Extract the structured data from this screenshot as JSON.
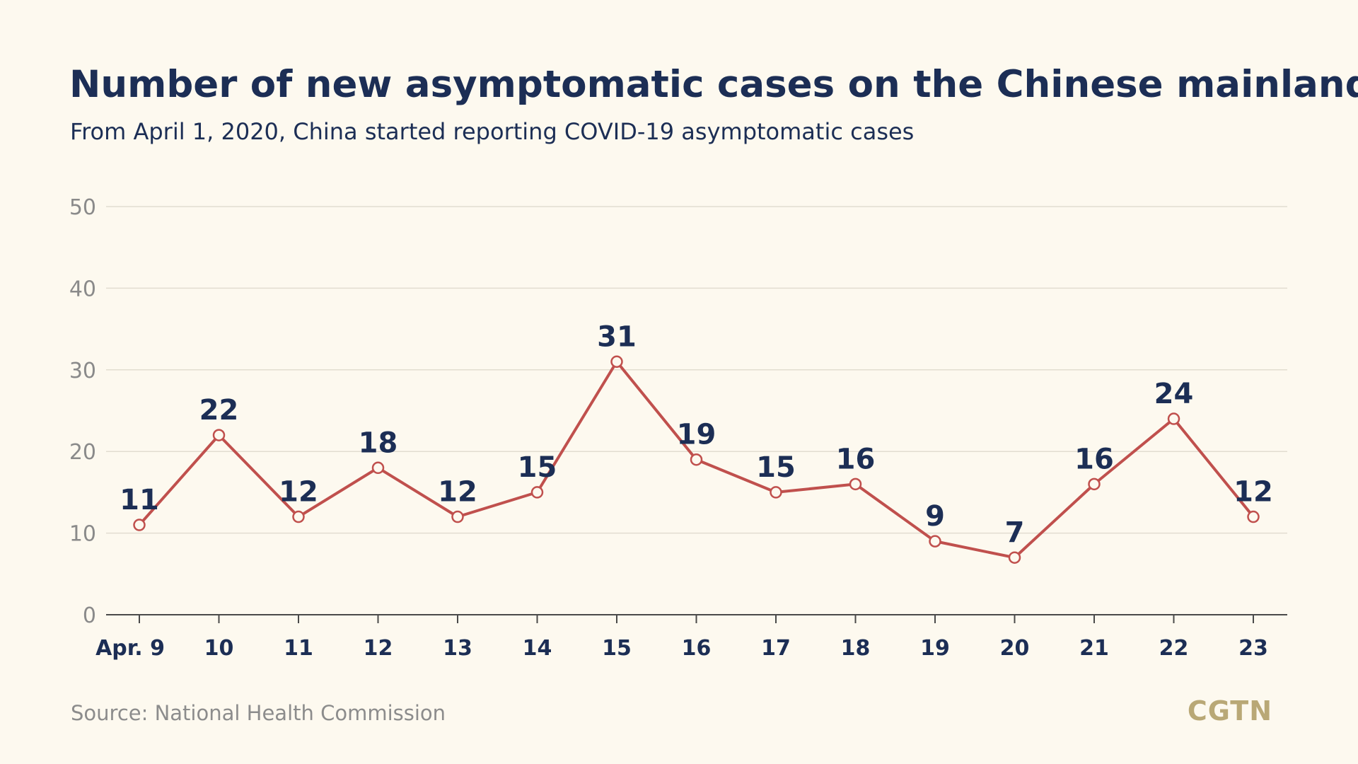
{
  "chart_data": {
    "type": "line",
    "title": "Number of new asymptomatic cases on the Chinese mainland",
    "subtitle": "From April 1, 2020, China started reporting COVID-19 asymptomatic cases",
    "xlabel": "",
    "ylabel": "",
    "categories": [
      "Apr. 9",
      "10",
      "11",
      "12",
      "13",
      "14",
      "15",
      "16",
      "17",
      "18",
      "19",
      "20",
      "21",
      "22",
      "23"
    ],
    "series": [
      {
        "values": [
          11,
          22,
          12,
          18,
          12,
          15,
          31,
          19,
          15,
          16,
          9,
          7,
          16,
          24,
          12
        ]
      }
    ],
    "ylim": [
      0,
      50
    ],
    "yticks": [
      0,
      10,
      20,
      30,
      40,
      50
    ],
    "grid": true,
    "legend": "none",
    "line_color": "#c0504d",
    "marker_fill": "#fdf9ef",
    "label_color": "#1c2e55"
  },
  "footer": {
    "source": "Source: National Health Commission",
    "logo": "CGTN"
  }
}
